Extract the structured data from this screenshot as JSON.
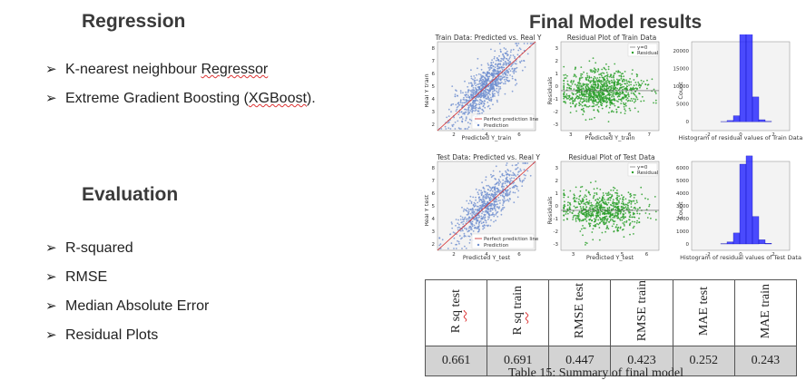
{
  "left": {
    "regression_title": "Regression",
    "regression_items": [
      "K-nearest neighbour Regressor",
      "Extreme Gradient Boosting (XGBoost)."
    ],
    "evaluation_title": "Evaluation",
    "evaluation_items": [
      "R-squared",
      "RMSE",
      "Median Absolute Error",
      "Residual Plots"
    ],
    "bullet_glyph": "➢"
  },
  "right": {
    "title": "Final Model results",
    "figure": {
      "train_scatter": {
        "title": "Train Data: Predicted vs. Real Y",
        "xlabel": "Predicted Y_train",
        "ylabel": "Real Y train",
        "xticks": [
          "2",
          "4",
          "6"
        ],
        "yticks": [
          "2",
          "3",
          "4",
          "5",
          "6",
          "7",
          "8"
        ],
        "legend": [
          "Perfect prediction line",
          "Prediction"
        ]
      },
      "train_residual": {
        "title": "Residual Plot of Train Data",
        "xlabel": "Predicted Y_train",
        "ylabel": "Residuals",
        "xticks": [
          "3",
          "4",
          "5",
          "6",
          "7"
        ],
        "yticks": [
          "-3",
          "-2",
          "-1",
          "0",
          "1",
          "2",
          "3"
        ],
        "legend": [
          "y=0",
          "Residual"
        ]
      },
      "train_hist": {
        "xlabel": "Histogram of residual values of Train Data",
        "ylabel": "Count",
        "xticks": [
          "-2",
          "0",
          "2"
        ],
        "yticks": [
          "0",
          "5000",
          "10000",
          "15000",
          "20000"
        ],
        "bars": [
          40,
          300,
          1500,
          22500,
          23500,
          6200,
          500,
          80
        ]
      },
      "test_scatter": {
        "title": "Test Data: Predicted vs. Real Y",
        "xlabel": "Predicted Y_test",
        "ylabel": "Real Y test",
        "xticks": [
          "2",
          "4",
          "6"
        ],
        "yticks": [
          "2",
          "3",
          "4",
          "5",
          "6",
          "7",
          "8"
        ],
        "legend": [
          "Perfect prediction line",
          "Prediction"
        ]
      },
      "test_residual": {
        "title": "Residual Plot of Test Data",
        "xlabel": "Predicted Y_test",
        "ylabel": "Residuals",
        "xticks": [
          "3",
          "4",
          "5",
          "6"
        ],
        "yticks": [
          "-3",
          "-2",
          "-1",
          "0",
          "1",
          "2",
          "3"
        ],
        "legend": [
          "y=0",
          "Residual"
        ]
      },
      "test_hist": {
        "xlabel": "Histogram of residual values of Test Data",
        "ylabel": "Count",
        "xticks": [
          "-2",
          "0",
          "2"
        ],
        "yticks": [
          "0",
          "1000",
          "2000",
          "3000",
          "4000",
          "5000",
          "6000"
        ],
        "bars": [
          20,
          150,
          800,
          5800,
          6400,
          2000,
          300,
          50
        ]
      }
    },
    "table": {
      "headers": [
        "R sq test",
        "R sq train",
        "RMSE test",
        "RMSE train",
        "MAE test",
        "MAE train"
      ],
      "values": [
        "0.661",
        "0.691",
        "0.447",
        "0.423",
        "0.252",
        "0.243"
      ],
      "caption": "Table 15: Summary of final model"
    }
  },
  "colors": {
    "scatter_blue": "#6f8fcf",
    "residual_green": "#2ca02c",
    "hist_blue": "#1f1fff",
    "ideal_line": "#d62728",
    "table_value_bg": "#d3d3d3"
  }
}
